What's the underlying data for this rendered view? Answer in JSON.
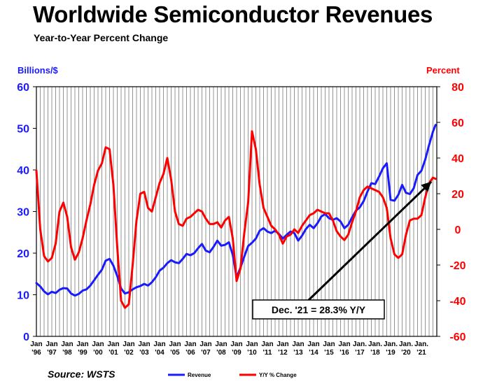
{
  "chart_data": {
    "type": "line",
    "title": "Worldwide Semiconductor Revenues",
    "subtitle": "Year-to-Year Percent Change",
    "ylabel_left": "Billions/$",
    "ylabel_right": "Percent",
    "ylim_left": [
      0,
      60
    ],
    "ylim_right": [
      -60,
      80
    ],
    "yticks_left": [
      "0",
      "10",
      "20",
      "30",
      "40",
      "50",
      "60"
    ],
    "yticks_right": [
      "-60",
      "-40",
      "-20",
      "0",
      "20",
      "40",
      "60",
      "80"
    ],
    "x_range": [
      1996.0,
      2022.0
    ],
    "grid": "vertical",
    "xtick_labels": [
      [
        "Jan",
        "'96"
      ],
      [
        "Jan",
        "'97"
      ],
      [
        "Jan",
        "'98"
      ],
      [
        "Jan",
        "'99"
      ],
      [
        "Jan",
        "'00"
      ],
      [
        "Jan",
        "'01"
      ],
      [
        "Jan",
        "'02"
      ],
      [
        "Jan",
        "'03"
      ],
      [
        "Jan",
        "'04"
      ],
      [
        "Jan",
        "'05"
      ],
      [
        "Jan",
        "'06"
      ],
      [
        "Jan",
        "'07"
      ],
      [
        "Jan",
        "'08"
      ],
      [
        "Jan",
        "'09"
      ],
      [
        "Jan",
        "'10"
      ],
      [
        "Jan",
        "'11"
      ],
      [
        "Jan",
        "'12"
      ],
      [
        "Jan",
        "'13"
      ],
      [
        "Jan",
        "'14"
      ],
      [
        "Jan",
        "'15"
      ],
      [
        "Jan",
        "'16"
      ],
      [
        "Jan.",
        "'17"
      ],
      [
        "Jan.",
        "'18"
      ],
      [
        "Jan.",
        "'19"
      ],
      [
        "Jan.",
        "'20"
      ],
      [
        "Jan.",
        "'21"
      ]
    ],
    "series": [
      {
        "name": "Revenue",
        "axis": "left",
        "color": "#1a1aff",
        "points": [
          [
            1996.0,
            12.8
          ],
          [
            1996.25,
            12.0
          ],
          [
            1996.5,
            10.8
          ],
          [
            1996.75,
            10.1
          ],
          [
            1997.0,
            10.7
          ],
          [
            1997.25,
            10.4
          ],
          [
            1997.5,
            11.2
          ],
          [
            1997.75,
            11.6
          ],
          [
            1998.0,
            11.5
          ],
          [
            1998.25,
            10.3
          ],
          [
            1998.5,
            9.8
          ],
          [
            1998.75,
            10.2
          ],
          [
            1999.0,
            11.0
          ],
          [
            1999.25,
            11.3
          ],
          [
            1999.5,
            12.2
          ],
          [
            1999.75,
            13.5
          ],
          [
            2000.0,
            14.8
          ],
          [
            2000.25,
            16.0
          ],
          [
            2000.5,
            18.2
          ],
          [
            2000.75,
            18.6
          ],
          [
            2001.0,
            17.0
          ],
          [
            2001.25,
            14.5
          ],
          [
            2001.5,
            11.5
          ],
          [
            2001.75,
            10.3
          ],
          [
            2002.0,
            10.6
          ],
          [
            2002.25,
            11.3
          ],
          [
            2002.5,
            11.8
          ],
          [
            2002.75,
            12.1
          ],
          [
            2003.0,
            12.6
          ],
          [
            2003.25,
            12.2
          ],
          [
            2003.5,
            13.0
          ],
          [
            2003.75,
            14.2
          ],
          [
            2004.0,
            15.8
          ],
          [
            2004.25,
            16.5
          ],
          [
            2004.5,
            17.6
          ],
          [
            2004.75,
            18.3
          ],
          [
            2005.0,
            17.8
          ],
          [
            2005.25,
            17.6
          ],
          [
            2005.5,
            18.6
          ],
          [
            2005.75,
            19.8
          ],
          [
            2006.0,
            19.5
          ],
          [
            2006.25,
            20.0
          ],
          [
            2006.5,
            21.2
          ],
          [
            2006.75,
            22.2
          ],
          [
            2007.0,
            20.6
          ],
          [
            2007.25,
            20.2
          ],
          [
            2007.5,
            21.5
          ],
          [
            2007.75,
            23.0
          ],
          [
            2008.0,
            21.8
          ],
          [
            2008.25,
            22.0
          ],
          [
            2008.5,
            22.6
          ],
          [
            2008.75,
            19.6
          ],
          [
            2009.0,
            14.2
          ],
          [
            2009.25,
            16.5
          ],
          [
            2009.5,
            19.2
          ],
          [
            2009.75,
            21.7
          ],
          [
            2010.0,
            22.5
          ],
          [
            2010.25,
            23.5
          ],
          [
            2010.5,
            25.4
          ],
          [
            2010.75,
            26.0
          ],
          [
            2011.0,
            25.2
          ],
          [
            2011.25,
            24.8
          ],
          [
            2011.5,
            25.4
          ],
          [
            2011.75,
            24.6
          ],
          [
            2012.0,
            23.5
          ],
          [
            2012.25,
            24.4
          ],
          [
            2012.5,
            25.2
          ],
          [
            2012.75,
            24.8
          ],
          [
            2013.0,
            23.0
          ],
          [
            2013.25,
            24.2
          ],
          [
            2013.5,
            25.8
          ],
          [
            2013.75,
            26.8
          ],
          [
            2014.0,
            26.0
          ],
          [
            2014.25,
            27.2
          ],
          [
            2014.5,
            28.8
          ],
          [
            2014.75,
            29.4
          ],
          [
            2015.0,
            28.4
          ],
          [
            2015.25,
            28.0
          ],
          [
            2015.5,
            28.4
          ],
          [
            2015.75,
            27.6
          ],
          [
            2016.0,
            26.0
          ],
          [
            2016.25,
            26.8
          ],
          [
            2016.5,
            28.6
          ],
          [
            2016.75,
            30.2
          ],
          [
            2017.0,
            31.0
          ],
          [
            2017.25,
            32.5
          ],
          [
            2017.5,
            34.8
          ],
          [
            2017.75,
            36.8
          ],
          [
            2018.0,
            36.6
          ],
          [
            2018.25,
            38.4
          ],
          [
            2018.5,
            40.4
          ],
          [
            2018.75,
            41.6
          ],
          [
            2019.0,
            32.8
          ],
          [
            2019.25,
            32.6
          ],
          [
            2019.5,
            34.0
          ],
          [
            2019.75,
            36.4
          ],
          [
            2020.0,
            34.5
          ],
          [
            2020.25,
            34.2
          ],
          [
            2020.5,
            35.6
          ],
          [
            2020.75,
            38.8
          ],
          [
            2021.0,
            39.8
          ],
          [
            2021.25,
            42.5
          ],
          [
            2021.5,
            46.0
          ],
          [
            2021.75,
            49.2
          ],
          [
            2021.92,
            50.8
          ]
        ]
      },
      {
        "name": "Y/Y % Change",
        "axis": "right",
        "color": "#ff0000",
        "points": [
          [
            1996.0,
            33
          ],
          [
            1996.25,
            0
          ],
          [
            1996.5,
            -15
          ],
          [
            1996.75,
            -18
          ],
          [
            1997.0,
            -16
          ],
          [
            1997.25,
            -8
          ],
          [
            1997.5,
            10
          ],
          [
            1997.75,
            15
          ],
          [
            1998.0,
            7
          ],
          [
            1998.25,
            -10
          ],
          [
            1998.5,
            -17
          ],
          [
            1998.75,
            -13
          ],
          [
            1999.0,
            -5
          ],
          [
            1999.25,
            5
          ],
          [
            1999.5,
            14
          ],
          [
            1999.75,
            25
          ],
          [
            2000.0,
            33
          ],
          [
            2000.25,
            37
          ],
          [
            2000.5,
            46
          ],
          [
            2000.75,
            45
          ],
          [
            2001.0,
            25
          ],
          [
            2001.25,
            -10
          ],
          [
            2001.5,
            -40
          ],
          [
            2001.75,
            -44
          ],
          [
            2002.0,
            -42
          ],
          [
            2002.25,
            -20
          ],
          [
            2002.5,
            5
          ],
          [
            2002.75,
            20
          ],
          [
            2003.0,
            21
          ],
          [
            2003.25,
            12
          ],
          [
            2003.5,
            10
          ],
          [
            2003.75,
            18
          ],
          [
            2004.0,
            26
          ],
          [
            2004.25,
            31
          ],
          [
            2004.5,
            40
          ],
          [
            2004.75,
            28
          ],
          [
            2005.0,
            10
          ],
          [
            2005.25,
            3
          ],
          [
            2005.5,
            2
          ],
          [
            2005.75,
            6
          ],
          [
            2006.0,
            7
          ],
          [
            2006.25,
            9
          ],
          [
            2006.5,
            11
          ],
          [
            2006.75,
            10
          ],
          [
            2007.0,
            6
          ],
          [
            2007.25,
            3
          ],
          [
            2007.5,
            3
          ],
          [
            2007.75,
            4
          ],
          [
            2008.0,
            1
          ],
          [
            2008.25,
            5
          ],
          [
            2008.5,
            7
          ],
          [
            2008.75,
            -5
          ],
          [
            2009.0,
            -29
          ],
          [
            2009.25,
            -22
          ],
          [
            2009.5,
            -2
          ],
          [
            2009.75,
            15
          ],
          [
            2010.0,
            55
          ],
          [
            2010.25,
            45
          ],
          [
            2010.5,
            25
          ],
          [
            2010.75,
            12
          ],
          [
            2011.0,
            7
          ],
          [
            2011.25,
            2
          ],
          [
            2011.5,
            0
          ],
          [
            2011.75,
            -3
          ],
          [
            2012.0,
            -8
          ],
          [
            2012.25,
            -4
          ],
          [
            2012.5,
            -3
          ],
          [
            2012.75,
            0
          ],
          [
            2013.0,
            -2
          ],
          [
            2013.25,
            2
          ],
          [
            2013.5,
            5
          ],
          [
            2013.75,
            8
          ],
          [
            2014.0,
            9
          ],
          [
            2014.25,
            11
          ],
          [
            2014.5,
            10
          ],
          [
            2014.75,
            9
          ],
          [
            2015.0,
            9
          ],
          [
            2015.25,
            5
          ],
          [
            2015.5,
            -1
          ],
          [
            2015.75,
            -4
          ],
          [
            2016.0,
            -6
          ],
          [
            2016.25,
            -3
          ],
          [
            2016.5,
            4
          ],
          [
            2016.75,
            10
          ],
          [
            2017.0,
            18
          ],
          [
            2017.25,
            22
          ],
          [
            2017.5,
            24
          ],
          [
            2017.75,
            23
          ],
          [
            2018.0,
            22
          ],
          [
            2018.25,
            21
          ],
          [
            2018.5,
            18
          ],
          [
            2018.75,
            12
          ],
          [
            2019.0,
            -5
          ],
          [
            2019.25,
            -14
          ],
          [
            2019.5,
            -16
          ],
          [
            2019.75,
            -14
          ],
          [
            2020.0,
            -3
          ],
          [
            2020.25,
            5
          ],
          [
            2020.5,
            6
          ],
          [
            2020.75,
            6
          ],
          [
            2021.0,
            8
          ],
          [
            2021.25,
            18
          ],
          [
            2021.5,
            26
          ],
          [
            2021.75,
            29
          ],
          [
            2021.92,
            28.3
          ]
        ]
      }
    ],
    "annotation": {
      "text": "Dec. '21 = 28.3% Y/Y",
      "arrow_to": [
        2021.92,
        28.3
      ],
      "axis": "right"
    },
    "legend": {
      "position": "bottom"
    }
  },
  "source": "Source: WSTS"
}
